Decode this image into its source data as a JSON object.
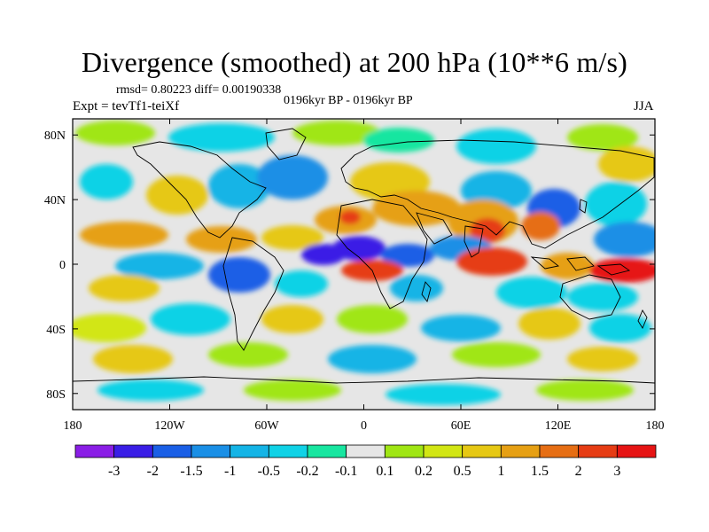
{
  "title": "Divergence (smoothed) at 200 hPa (10**6 m/s)",
  "stats_line": "rmsd= 0.80223 diff= 0.00190338",
  "experiment": "Expt = tevTf1-teiXf",
  "period": "0196kyr BP - 0196kyr BP",
  "season": "JJA",
  "axes": {
    "lat_ticks": [
      "80N",
      "40N",
      "0",
      "40S",
      "80S"
    ],
    "lon_ticks": [
      "180",
      "120W",
      "60W",
      "0",
      "60E",
      "120E",
      "180"
    ]
  },
  "colorbar": {
    "labels": [
      "-3",
      "-2",
      "-1.5",
      "-1",
      "-0.5",
      "-0.2",
      "-0.1",
      "0.1",
      "0.2",
      "0.5",
      "1",
      "1.5",
      "2",
      "3"
    ],
    "colors": [
      "#8a1ee6",
      "#3a1ee6",
      "#1a5fe6",
      "#1a8fe6",
      "#14b4e6",
      "#10d2e6",
      "#18e6a0",
      "#e6e6e6",
      "#a0e614",
      "#d2e614",
      "#e6c814",
      "#e6a014",
      "#e66e14",
      "#e63c14",
      "#e61414"
    ]
  },
  "map_colors": {
    "background": "#e6e6e6",
    "coast": "#000000"
  }
}
